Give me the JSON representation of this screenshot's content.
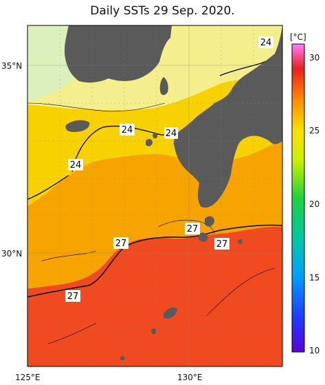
{
  "title": "Daily SSTs 29 Sep. 2020.",
  "colorbar": {
    "unit": "[°C]",
    "ticks": [
      "30",
      "25",
      "20",
      "15",
      "10"
    ]
  },
  "axes": {
    "lat_labels": [
      "35°N",
      "30°N"
    ],
    "lon_labels": [
      "125°E",
      "130°E"
    ]
  },
  "contour_labels": [
    "24",
    "24",
    "24",
    "24",
    "27",
    "27",
    "27",
    "27"
  ],
  "colors": {
    "land": "#5a5a5a",
    "cold_north": "#dff3c4",
    "pale_yellow": "#f5f0a0",
    "yellow": "#f8e000",
    "orange": "#f7a800",
    "red": "#f04a20"
  }
}
